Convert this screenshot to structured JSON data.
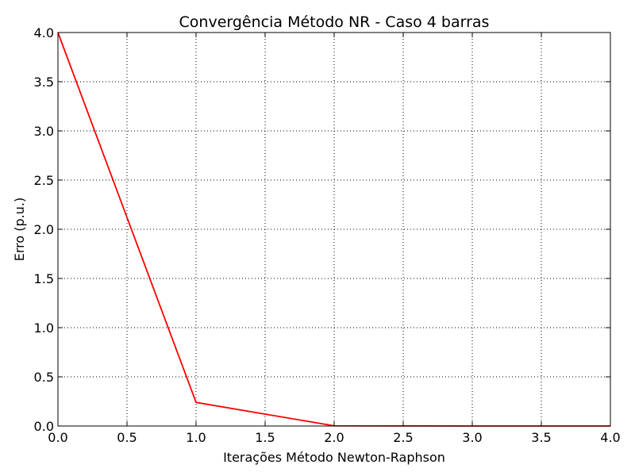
{
  "chart_data": {
    "type": "line",
    "title": "Convergência Método NR - Caso 4 barras",
    "xlabel": "Iterações Método Newton-Raphson",
    "ylabel": "Erro (p.u.)",
    "xlim": [
      0.0,
      4.0
    ],
    "ylim": [
      0.0,
      4.0
    ],
    "xticks": [
      "0.0",
      "0.5",
      "1.0",
      "1.5",
      "2.0",
      "2.5",
      "3.0",
      "3.5",
      "4.0"
    ],
    "yticks": [
      "0.0",
      "0.5",
      "1.0",
      "1.5",
      "2.0",
      "2.5",
      "3.0",
      "3.5",
      "4.0"
    ],
    "grid": true,
    "series": [
      {
        "color": "#ff0000",
        "x": [
          0,
          1,
          2,
          3,
          4
        ],
        "y": [
          4.0,
          0.24,
          0.002,
          0.0,
          0.0
        ]
      }
    ]
  }
}
